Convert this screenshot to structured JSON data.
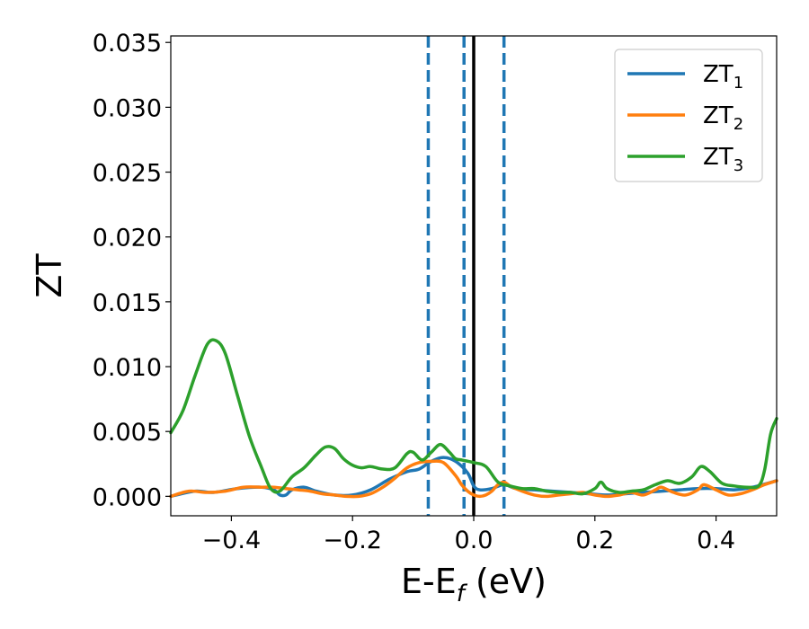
{
  "chart_data": {
    "type": "line",
    "title": "",
    "xlabel": "E-E",
    "xlabel_sub": "f",
    "xlabel_unit": " (eV)",
    "ylabel": "ZT",
    "xlim": [
      -0.5,
      0.5
    ],
    "ylim": [
      -0.0015,
      0.0355
    ],
    "xticks": [
      -0.4,
      -0.2,
      0.0,
      0.2,
      0.4
    ],
    "xtick_labels": [
      "−0.4",
      "−0.2",
      "0.0",
      "0.2",
      "0.4"
    ],
    "yticks": [
      0.0,
      0.005,
      0.01,
      0.015,
      0.02,
      0.025,
      0.03,
      0.035
    ],
    "ytick_labels": [
      "0.000",
      "0.005",
      "0.010",
      "0.015",
      "0.020",
      "0.025",
      "0.030",
      "0.035"
    ],
    "grid": false,
    "legend_position": "top-right",
    "vlines": [
      {
        "x": -0.075,
        "style": "dashed",
        "color": "#1f77b4"
      },
      {
        "x": -0.016,
        "style": "dashed",
        "color": "#1f77b4"
      },
      {
        "x": 0.0,
        "style": "solid",
        "color": "#000000"
      },
      {
        "x": 0.05,
        "style": "dashed",
        "color": "#1f77b4"
      }
    ],
    "series": [
      {
        "name": "ZT",
        "sub": "1",
        "color": "#1f77b4",
        "x": [
          -0.5,
          -0.46,
          -0.43,
          -0.39,
          -0.35,
          -0.33,
          -0.32,
          -0.31,
          -0.3,
          -0.28,
          -0.26,
          -0.23,
          -0.2,
          -0.17,
          -0.14,
          -0.11,
          -0.09,
          -0.07,
          -0.05,
          -0.03,
          -0.01,
          0.0,
          0.01,
          0.03,
          0.05,
          0.07,
          0.1,
          0.13,
          0.16,
          0.19,
          0.22,
          0.25,
          0.28,
          0.31,
          0.34,
          0.37,
          0.4,
          0.43,
          0.46,
          0.5
        ],
        "y": [
          0.0,
          0.0004,
          0.0003,
          0.0006,
          0.0007,
          0.0005,
          0.0001,
          0.0001,
          0.0005,
          0.0007,
          0.0004,
          0.0001,
          0.0001,
          0.0005,
          0.0013,
          0.0019,
          0.0021,
          0.0027,
          0.003,
          0.0027,
          0.0018,
          0.0008,
          0.0005,
          0.0006,
          0.0009,
          0.0006,
          0.0005,
          0.0004,
          0.0003,
          0.0002,
          0.0001,
          0.0002,
          0.0003,
          0.0004,
          0.0005,
          0.0006,
          0.0006,
          0.0005,
          0.0007,
          0.0012
        ]
      },
      {
        "name": "ZT",
        "sub": "2",
        "color": "#ff7f0e",
        "x": [
          -0.5,
          -0.47,
          -0.44,
          -0.41,
          -0.38,
          -0.35,
          -0.33,
          -0.31,
          -0.29,
          -0.27,
          -0.25,
          -0.23,
          -0.21,
          -0.19,
          -0.17,
          -0.15,
          -0.13,
          -0.11,
          -0.09,
          -0.07,
          -0.05,
          -0.03,
          -0.02,
          -0.01,
          0.0,
          0.01,
          0.02,
          0.03,
          0.04,
          0.05,
          0.06,
          0.08,
          0.1,
          0.12,
          0.14,
          0.16,
          0.18,
          0.2,
          0.22,
          0.24,
          0.26,
          0.28,
          0.3,
          0.31,
          0.33,
          0.35,
          0.37,
          0.38,
          0.4,
          0.42,
          0.44,
          0.46,
          0.48,
          0.5
        ],
        "y": [
          0.0,
          0.0004,
          0.0003,
          0.0004,
          0.0007,
          0.0007,
          0.0007,
          0.0006,
          0.0005,
          0.0004,
          0.0002,
          0.0001,
          0.0,
          0.0,
          0.0002,
          0.0007,
          0.0014,
          0.0022,
          0.0026,
          0.0027,
          0.0026,
          0.0016,
          0.0009,
          0.0004,
          0.0001,
          0.0,
          0.0001,
          0.0004,
          0.0009,
          0.0011,
          0.0008,
          0.0004,
          0.0001,
          0.0,
          0.0001,
          0.0002,
          0.0003,
          0.0001,
          0.0,
          0.0001,
          0.0003,
          0.0001,
          0.0005,
          0.0007,
          0.0003,
          0.0001,
          0.0005,
          0.0009,
          0.0005,
          0.0001,
          0.0002,
          0.0005,
          0.0009,
          0.0012
        ]
      },
      {
        "name": "ZT",
        "sub": "3",
        "color": "#2ca02c",
        "x": [
          -0.5,
          -0.48,
          -0.46,
          -0.44,
          -0.425,
          -0.41,
          -0.39,
          -0.37,
          -0.35,
          -0.335,
          -0.32,
          -0.3,
          -0.28,
          -0.26,
          -0.245,
          -0.23,
          -0.215,
          -0.2,
          -0.185,
          -0.17,
          -0.15,
          -0.13,
          -0.11,
          -0.1,
          -0.085,
          -0.07,
          -0.055,
          -0.04,
          -0.03,
          -0.02,
          0.0,
          0.02,
          0.04,
          0.06,
          0.08,
          0.1,
          0.12,
          0.14,
          0.16,
          0.18,
          0.2,
          0.21,
          0.22,
          0.24,
          0.26,
          0.28,
          0.3,
          0.32,
          0.34,
          0.36,
          0.375,
          0.39,
          0.41,
          0.43,
          0.45,
          0.47,
          0.48,
          0.49,
          0.5
        ],
        "y": [
          0.0049,
          0.0066,
          0.0093,
          0.0117,
          0.012,
          0.011,
          0.0078,
          0.0046,
          0.0022,
          0.0006,
          0.0004,
          0.0015,
          0.0022,
          0.0032,
          0.0038,
          0.0037,
          0.0029,
          0.0024,
          0.0022,
          0.0023,
          0.0021,
          0.0022,
          0.0033,
          0.0034,
          0.0028,
          0.0034,
          0.004,
          0.0034,
          0.0029,
          0.0028,
          0.0026,
          0.0023,
          0.0011,
          0.0008,
          0.0006,
          0.0006,
          0.0004,
          0.0003,
          0.0003,
          0.0002,
          0.0006,
          0.0011,
          0.0006,
          0.0003,
          0.0004,
          0.0005,
          0.0009,
          0.0012,
          0.001,
          0.0015,
          0.0023,
          0.0019,
          0.001,
          0.0008,
          0.0007,
          0.0008,
          0.002,
          0.0048,
          0.006
        ]
      }
    ]
  }
}
